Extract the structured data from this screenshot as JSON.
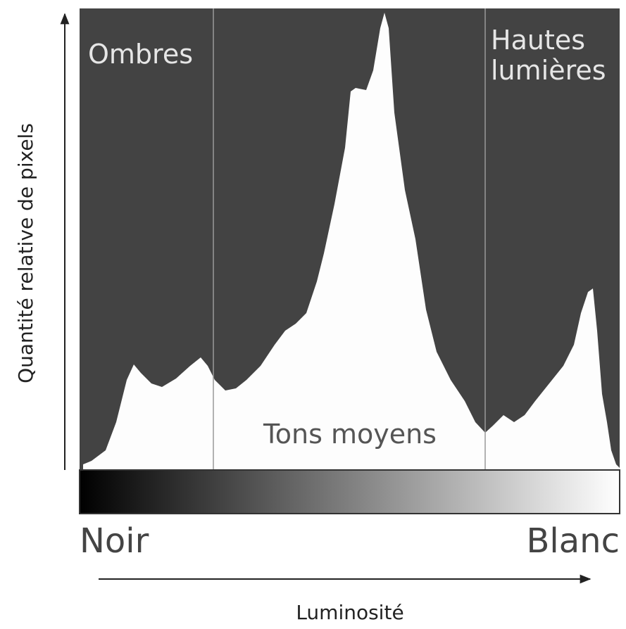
{
  "y_axis_label": "Quantité relative de pixels",
  "x_axis_label": "Luminosité",
  "zones": {
    "shadows": "Ombres",
    "highlights": [
      "Hautes",
      "lumières"
    ],
    "midtones": "Tons moyens"
  },
  "ends": {
    "left": "Noir",
    "right": "Blanc"
  }
}
